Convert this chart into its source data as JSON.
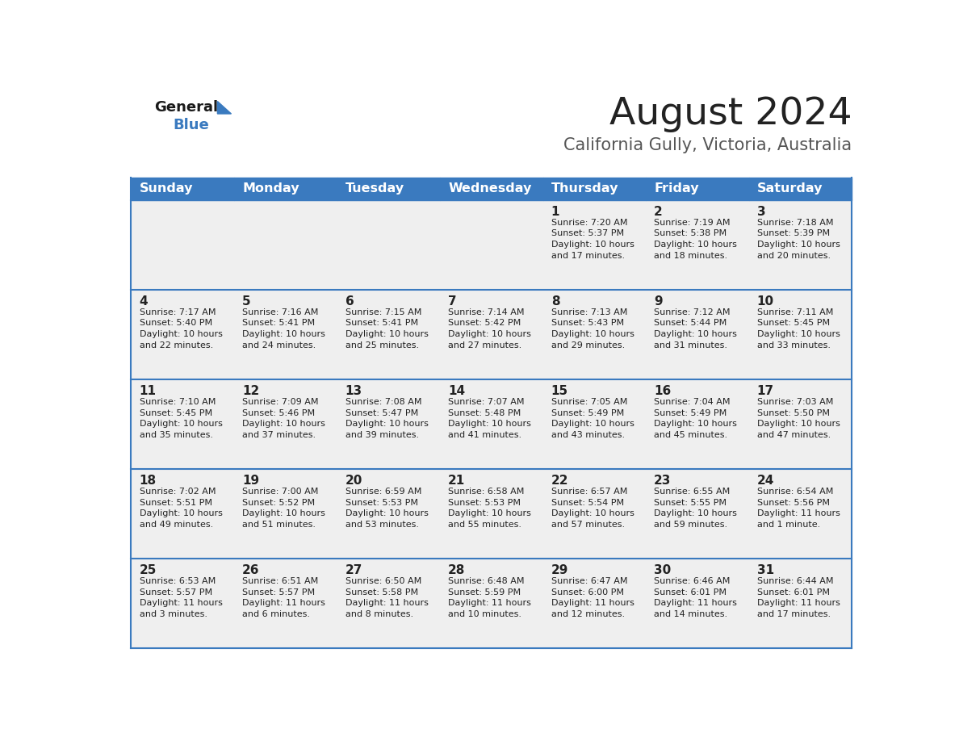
{
  "title": "August 2024",
  "subtitle": "California Gully, Victoria, Australia",
  "days_of_week": [
    "Sunday",
    "Monday",
    "Tuesday",
    "Wednesday",
    "Thursday",
    "Friday",
    "Saturday"
  ],
  "header_bg": "#3a7abf",
  "header_text": "#ffffff",
  "row_bg": "#efefef",
  "cell_text": "#222222",
  "border_color": "#3a7abf",
  "title_color": "#222222",
  "subtitle_color": "#555555",
  "calendar": [
    [
      null,
      null,
      null,
      null,
      {
        "day": 1,
        "sunrise": "7:20 AM",
        "sunset": "5:37 PM",
        "daylight": "10 hours and 17 minutes."
      },
      {
        "day": 2,
        "sunrise": "7:19 AM",
        "sunset": "5:38 PM",
        "daylight": "10 hours and 18 minutes."
      },
      {
        "day": 3,
        "sunrise": "7:18 AM",
        "sunset": "5:39 PM",
        "daylight": "10 hours and 20 minutes."
      }
    ],
    [
      {
        "day": 4,
        "sunrise": "7:17 AM",
        "sunset": "5:40 PM",
        "daylight": "10 hours and 22 minutes."
      },
      {
        "day": 5,
        "sunrise": "7:16 AM",
        "sunset": "5:41 PM",
        "daylight": "10 hours and 24 minutes."
      },
      {
        "day": 6,
        "sunrise": "7:15 AM",
        "sunset": "5:41 PM",
        "daylight": "10 hours and 25 minutes."
      },
      {
        "day": 7,
        "sunrise": "7:14 AM",
        "sunset": "5:42 PM",
        "daylight": "10 hours and 27 minutes."
      },
      {
        "day": 8,
        "sunrise": "7:13 AM",
        "sunset": "5:43 PM",
        "daylight": "10 hours and 29 minutes."
      },
      {
        "day": 9,
        "sunrise": "7:12 AM",
        "sunset": "5:44 PM",
        "daylight": "10 hours and 31 minutes."
      },
      {
        "day": 10,
        "sunrise": "7:11 AM",
        "sunset": "5:45 PM",
        "daylight": "10 hours and 33 minutes."
      }
    ],
    [
      {
        "day": 11,
        "sunrise": "7:10 AM",
        "sunset": "5:45 PM",
        "daylight": "10 hours and 35 minutes."
      },
      {
        "day": 12,
        "sunrise": "7:09 AM",
        "sunset": "5:46 PM",
        "daylight": "10 hours and 37 minutes."
      },
      {
        "day": 13,
        "sunrise": "7:08 AM",
        "sunset": "5:47 PM",
        "daylight": "10 hours and 39 minutes."
      },
      {
        "day": 14,
        "sunrise": "7:07 AM",
        "sunset": "5:48 PM",
        "daylight": "10 hours and 41 minutes."
      },
      {
        "day": 15,
        "sunrise": "7:05 AM",
        "sunset": "5:49 PM",
        "daylight": "10 hours and 43 minutes."
      },
      {
        "day": 16,
        "sunrise": "7:04 AM",
        "sunset": "5:49 PM",
        "daylight": "10 hours and 45 minutes."
      },
      {
        "day": 17,
        "sunrise": "7:03 AM",
        "sunset": "5:50 PM",
        "daylight": "10 hours and 47 minutes."
      }
    ],
    [
      {
        "day": 18,
        "sunrise": "7:02 AM",
        "sunset": "5:51 PM",
        "daylight": "10 hours and 49 minutes."
      },
      {
        "day": 19,
        "sunrise": "7:00 AM",
        "sunset": "5:52 PM",
        "daylight": "10 hours and 51 minutes."
      },
      {
        "day": 20,
        "sunrise": "6:59 AM",
        "sunset": "5:53 PM",
        "daylight": "10 hours and 53 minutes."
      },
      {
        "day": 21,
        "sunrise": "6:58 AM",
        "sunset": "5:53 PM",
        "daylight": "10 hours and 55 minutes."
      },
      {
        "day": 22,
        "sunrise": "6:57 AM",
        "sunset": "5:54 PM",
        "daylight": "10 hours and 57 minutes."
      },
      {
        "day": 23,
        "sunrise": "6:55 AM",
        "sunset": "5:55 PM",
        "daylight": "10 hours and 59 minutes."
      },
      {
        "day": 24,
        "sunrise": "6:54 AM",
        "sunset": "5:56 PM",
        "daylight": "11 hours and 1 minute."
      }
    ],
    [
      {
        "day": 25,
        "sunrise": "6:53 AM",
        "sunset": "5:57 PM",
        "daylight": "11 hours and 3 minutes."
      },
      {
        "day": 26,
        "sunrise": "6:51 AM",
        "sunset": "5:57 PM",
        "daylight": "11 hours and 6 minutes."
      },
      {
        "day": 27,
        "sunrise": "6:50 AM",
        "sunset": "5:58 PM",
        "daylight": "11 hours and 8 minutes."
      },
      {
        "day": 28,
        "sunrise": "6:48 AM",
        "sunset": "5:59 PM",
        "daylight": "11 hours and 10 minutes."
      },
      {
        "day": 29,
        "sunrise": "6:47 AM",
        "sunset": "6:00 PM",
        "daylight": "11 hours and 12 minutes."
      },
      {
        "day": 30,
        "sunrise": "6:46 AM",
        "sunset": "6:01 PM",
        "daylight": "11 hours and 14 minutes."
      },
      {
        "day": 31,
        "sunrise": "6:44 AM",
        "sunset": "6:01 PM",
        "daylight": "11 hours and 17 minutes."
      }
    ]
  ]
}
